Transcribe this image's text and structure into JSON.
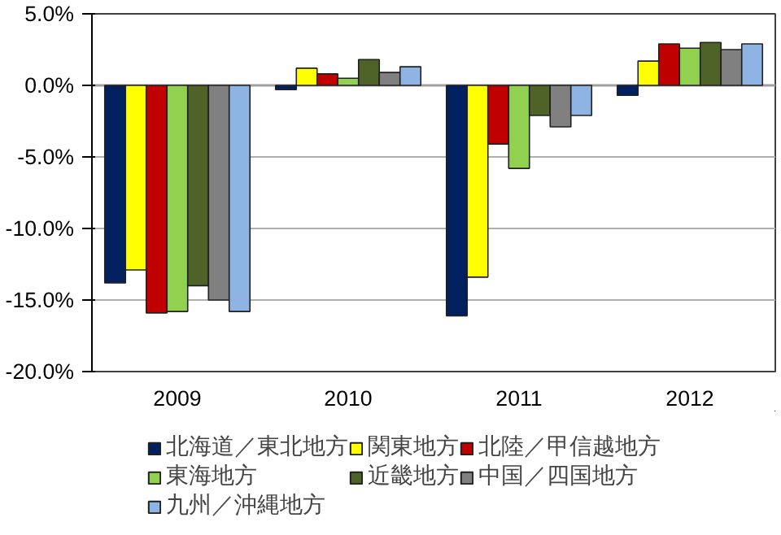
{
  "chart_data": {
    "type": "bar",
    "categories": [
      "2009",
      "2010",
      "2011",
      "2012"
    ],
    "series": [
      {
        "name": "北海道／東北地方",
        "color": "#002060",
        "values": [
          -13.8,
          -0.3,
          -16.1,
          -0.7
        ]
      },
      {
        "name": "関東地方",
        "color": "#ffff00",
        "values": [
          -12.9,
          1.2,
          -13.4,
          1.7
        ]
      },
      {
        "name": "北陸／甲信越地方",
        "color": "#c00000",
        "values": [
          -15.9,
          0.8,
          -4.1,
          2.9
        ]
      },
      {
        "name": "東海地方",
        "color": "#92d050",
        "values": [
          -15.8,
          0.5,
          -5.8,
          2.6
        ]
      },
      {
        "name": "近畿地方",
        "color": "#4f6228",
        "values": [
          -14.0,
          1.8,
          -2.1,
          3.0
        ]
      },
      {
        "name": "中国／四国地方",
        "color": "#808080",
        "values": [
          -15.0,
          0.9,
          -2.9,
          2.5
        ]
      },
      {
        "name": "九州／沖縄地方",
        "color": "#8db4e2",
        "values": [
          -15.8,
          1.3,
          -2.1,
          2.9
        ]
      }
    ],
    "ylim": [
      -20,
      5
    ],
    "yticks": [
      {
        "value": -20,
        "label": "-20.0%"
      },
      {
        "value": -15,
        "label": "-15.0%"
      },
      {
        "value": -10,
        "label": "-10.0%"
      },
      {
        "value": -5,
        "label": "-5.0%"
      },
      {
        "value": 0,
        "label": "0.0%"
      },
      {
        "value": 5,
        "label": "5.0%"
      }
    ],
    "grid": "y",
    "legend": "bottom"
  }
}
